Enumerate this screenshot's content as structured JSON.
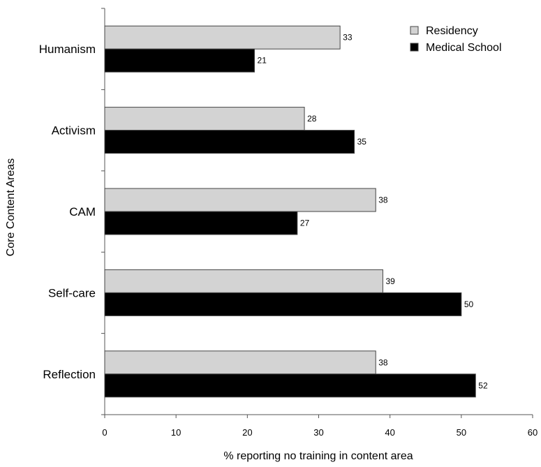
{
  "chart_data": {
    "type": "bar",
    "orientation": "horizontal",
    "title": "",
    "xlabel": "% reporting no training in content area",
    "ylabel": "Core Content Areas",
    "categories": [
      "Humanism",
      "Activism",
      "CAM",
      "Self-care",
      "Reflection"
    ],
    "series": [
      {
        "name": "Residency",
        "values": [
          33,
          28,
          38,
          39,
          38
        ],
        "color": "#d3d3d3"
      },
      {
        "name": "Medical School",
        "values": [
          21,
          35,
          27,
          50,
          52
        ],
        "color": "#000000"
      }
    ],
    "xlim": [
      0,
      60
    ],
    "xticks": [
      0,
      10,
      20,
      30,
      40,
      50,
      60
    ],
    "grid": false,
    "legend_position": "top-right",
    "data_labels": true
  }
}
